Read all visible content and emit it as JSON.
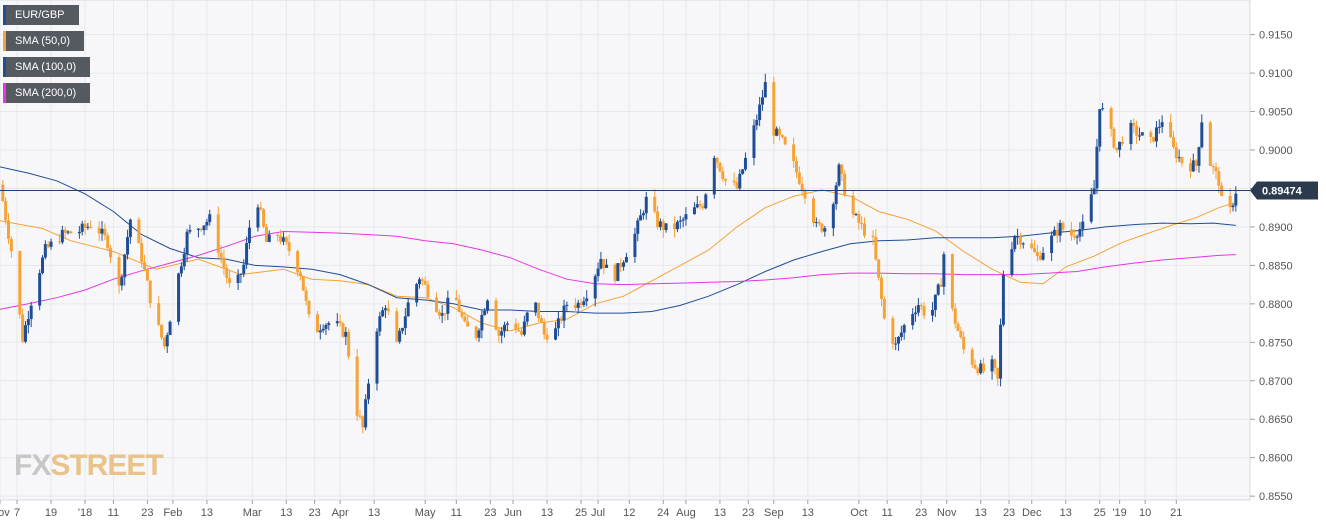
{
  "colors": {
    "up": "#1f4e96",
    "down": "#f5a236",
    "sma50": "#f5a236",
    "sma100": "#1f4e96",
    "sma200": "#e535e5",
    "price_line": "#1f3f6b",
    "grid": "#e6e8ec",
    "background": "#f7f7f9"
  },
  "legend": [
    {
      "label": "EUR/GBP",
      "color": "#1f4e96",
      "icon": "candle-series-swatch"
    },
    {
      "label": "SMA (50,0)",
      "color": "#f5a236",
      "icon": "line-series-swatch"
    },
    {
      "label": "SMA (100,0)",
      "color": "#1f4e96",
      "icon": "line-series-swatch"
    },
    {
      "label": "SMA (200,0)",
      "color": "#e535e5",
      "icon": "line-series-swatch"
    }
  ],
  "logo": {
    "part1": "FX",
    "part2": "STREET"
  },
  "chart_data": {
    "type": "candlestick",
    "title": "",
    "symbol": "EUR/GBP",
    "ylim": [
      0.8545,
      0.9195
    ],
    "yticks": [
      "0.9150",
      "0.9100",
      "0.9050",
      "0.9000",
      "0.8950",
      "0.8900",
      "0.8850",
      "0.8800",
      "0.8750",
      "0.8700",
      "0.8650",
      "0.8600",
      "0.8550"
    ],
    "xlim_days": [
      0,
      441
    ],
    "xticks": [
      {
        "d": 0,
        "label": "Nov"
      },
      {
        "d": 6,
        "label": "7"
      },
      {
        "d": 18,
        "label": "19"
      },
      {
        "d": 30,
        "label": "'18"
      },
      {
        "d": 40,
        "label": "11"
      },
      {
        "d": 52,
        "label": "23"
      },
      {
        "d": 61,
        "label": "Feb"
      },
      {
        "d": 73,
        "label": "13"
      },
      {
        "d": 89,
        "label": "Mar"
      },
      {
        "d": 101,
        "label": "13"
      },
      {
        "d": 111,
        "label": "23"
      },
      {
        "d": 120,
        "label": "Apr"
      },
      {
        "d": 132,
        "label": "13"
      },
      {
        "d": 150,
        "label": "May"
      },
      {
        "d": 161,
        "label": "11"
      },
      {
        "d": 173,
        "label": "23"
      },
      {
        "d": 181,
        "label": "Jun"
      },
      {
        "d": 193,
        "label": "13"
      },
      {
        "d": 205,
        "label": "25"
      },
      {
        "d": 211,
        "label": "Jul"
      },
      {
        "d": 222,
        "label": "12"
      },
      {
        "d": 234,
        "label": "24"
      },
      {
        "d": 242,
        "label": "Aug"
      },
      {
        "d": 254,
        "label": "13"
      },
      {
        "d": 264,
        "label": "23"
      },
      {
        "d": 273,
        "label": "Sep"
      },
      {
        "d": 285,
        "label": "13"
      },
      {
        "d": 303,
        "label": "Oct"
      },
      {
        "d": 313,
        "label": "11"
      },
      {
        "d": 325,
        "label": "23"
      },
      {
        "d": 334,
        "label": "Nov"
      },
      {
        "d": 346,
        "label": "13"
      },
      {
        "d": 356,
        "label": "23"
      },
      {
        "d": 364,
        "label": "Dec"
      },
      {
        "d": 376,
        "label": "13"
      },
      {
        "d": 388,
        "label": "25"
      },
      {
        "d": 395,
        "label": "'19"
      },
      {
        "d": 404,
        "label": "10"
      },
      {
        "d": 415,
        "label": "21"
      }
    ],
    "current_price": 0.89474,
    "current_price_label": "0.89474",
    "series": [
      {
        "name": "EUR/GBP",
        "type": "candlestick",
        "anchors": [
          [
            0,
            0.8955
          ],
          [
            4,
            0.887
          ],
          [
            8,
            0.8755
          ],
          [
            12,
            0.882
          ],
          [
            16,
            0.887
          ],
          [
            22,
            0.889
          ],
          [
            28,
            0.8895
          ],
          [
            33,
            0.8905
          ],
          [
            38,
            0.888
          ],
          [
            42,
            0.882
          ],
          [
            46,
            0.891
          ],
          [
            50,
            0.886
          ],
          [
            54,
            0.879
          ],
          [
            58,
            0.8745
          ],
          [
            62,
            0.882
          ],
          [
            66,
            0.889
          ],
          [
            70,
            0.89
          ],
          [
            74,
            0.891
          ],
          [
            78,
            0.886
          ],
          [
            82,
            0.881
          ],
          [
            86,
            0.885
          ],
          [
            90,
            0.895
          ],
          [
            94,
            0.888
          ],
          [
            98,
            0.889
          ],
          [
            102,
            0.887
          ],
          [
            106,
            0.884
          ],
          [
            110,
            0.876
          ],
          [
            114,
            0.8775
          ],
          [
            118,
            0.8775
          ],
          [
            122,
            0.876
          ],
          [
            126,
            0.866
          ],
          [
            128,
            0.8638
          ],
          [
            132,
            0.876
          ],
          [
            136,
            0.88
          ],
          [
            140,
            0.8745
          ],
          [
            144,
            0.88
          ],
          [
            148,
            0.8835
          ],
          [
            152,
            0.881
          ],
          [
            156,
            0.8785
          ],
          [
            160,
            0.8815
          ],
          [
            164,
            0.877
          ],
          [
            168,
            0.876
          ],
          [
            172,
            0.881
          ],
          [
            176,
            0.876
          ],
          [
            180,
            0.878
          ],
          [
            184,
            0.876
          ],
          [
            188,
            0.881
          ],
          [
            192,
            0.876
          ],
          [
            196,
            0.8765
          ],
          [
            200,
            0.88
          ],
          [
            204,
            0.88
          ],
          [
            208,
            0.882
          ],
          [
            212,
            0.886
          ],
          [
            216,
            0.883
          ],
          [
            220,
            0.886
          ],
          [
            224,
            0.889
          ],
          [
            228,
            0.8935
          ],
          [
            232,
            0.8905
          ],
          [
            236,
            0.8895
          ],
          [
            240,
            0.8905
          ],
          [
            244,
            0.892
          ],
          [
            248,
            0.893
          ],
          [
            252,
            0.8995
          ],
          [
            256,
            0.896
          ],
          [
            260,
            0.895
          ],
          [
            264,
            0.9
          ],
          [
            268,
            0.9055
          ],
          [
            270,
            0.9085
          ],
          [
            272,
            0.903
          ],
          [
            276,
            0.901
          ],
          [
            280,
            0.898
          ],
          [
            284,
            0.8945
          ],
          [
            288,
            0.89
          ],
          [
            292,
            0.89
          ],
          [
            296,
            0.8975
          ],
          [
            300,
            0.892
          ],
          [
            304,
            0.89
          ],
          [
            308,
            0.888
          ],
          [
            310,
            0.883
          ],
          [
            312,
            0.878
          ],
          [
            316,
            0.8745
          ],
          [
            320,
            0.878
          ],
          [
            324,
            0.88
          ],
          [
            328,
            0.878
          ],
          [
            332,
            0.883
          ],
          [
            334,
            0.89
          ],
          [
            336,
            0.879
          ],
          [
            340,
            0.874
          ],
          [
            344,
            0.872
          ],
          [
            348,
            0.871
          ],
          [
            350,
            0.872
          ],
          [
            352,
            0.87
          ],
          [
            354,
            0.884
          ],
          [
            358,
            0.889
          ],
          [
            362,
            0.888
          ],
          [
            366,
            0.886
          ],
          [
            370,
            0.888
          ],
          [
            374,
            0.89
          ],
          [
            378,
            0.889
          ],
          [
            382,
            0.89
          ],
          [
            386,
            0.895
          ],
          [
            388,
            0.906
          ],
          [
            390,
            0.904
          ],
          [
            394,
            0.9
          ],
          [
            398,
            0.903
          ],
          [
            402,
            0.902
          ],
          [
            406,
            0.901
          ],
          [
            410,
            0.904
          ],
          [
            414,
            0.9
          ],
          [
            418,
            0.898
          ],
          [
            422,
            0.898
          ],
          [
            424,
            0.904
          ],
          [
            426,
            0.899
          ],
          [
            430,
            0.896
          ],
          [
            432,
            0.8905
          ],
          [
            434,
            0.892
          ],
          [
            436,
            0.8947
          ]
        ]
      },
      {
        "name": "SMA (50,0)",
        "type": "line",
        "points": [
          [
            0,
            0.8908
          ],
          [
            15,
            0.8898
          ],
          [
            25,
            0.8882
          ],
          [
            40,
            0.8868
          ],
          [
            55,
            0.8845
          ],
          [
            70,
            0.8858
          ],
          [
            85,
            0.8838
          ],
          [
            100,
            0.8845
          ],
          [
            110,
            0.8832
          ],
          [
            120,
            0.883
          ],
          [
            130,
            0.8825
          ],
          [
            140,
            0.881
          ],
          [
            150,
            0.8808
          ],
          [
            160,
            0.8795
          ],
          [
            170,
            0.8775
          ],
          [
            180,
            0.8765
          ],
          [
            190,
            0.8775
          ],
          [
            200,
            0.878
          ],
          [
            210,
            0.88
          ],
          [
            220,
            0.881
          ],
          [
            230,
            0.883
          ],
          [
            240,
            0.885
          ],
          [
            250,
            0.887
          ],
          [
            260,
            0.89
          ],
          [
            270,
            0.8925
          ],
          [
            280,
            0.894
          ],
          [
            290,
            0.8948
          ],
          [
            300,
            0.894
          ],
          [
            310,
            0.892
          ],
          [
            320,
            0.891
          ],
          [
            330,
            0.8895
          ],
          [
            340,
            0.8868
          ],
          [
            350,
            0.8845
          ],
          [
            360,
            0.8828
          ],
          [
            368,
            0.8826
          ],
          [
            376,
            0.8848
          ],
          [
            386,
            0.8862
          ],
          [
            396,
            0.888
          ],
          [
            406,
            0.8893
          ],
          [
            414,
            0.8903
          ],
          [
            422,
            0.8912
          ],
          [
            430,
            0.8925
          ],
          [
            436,
            0.8932
          ]
        ]
      },
      {
        "name": "SMA (100,0)",
        "type": "line",
        "points": [
          [
            0,
            0.8978
          ],
          [
            10,
            0.897
          ],
          [
            20,
            0.896
          ],
          [
            30,
            0.8943
          ],
          [
            40,
            0.892
          ],
          [
            50,
            0.889
          ],
          [
            60,
            0.8872
          ],
          [
            70,
            0.886
          ],
          [
            80,
            0.8858
          ],
          [
            90,
            0.885
          ],
          [
            100,
            0.8848
          ],
          [
            110,
            0.8845
          ],
          [
            120,
            0.8838
          ],
          [
            130,
            0.8825
          ],
          [
            140,
            0.8808
          ],
          [
            150,
            0.8805
          ],
          [
            160,
            0.88
          ],
          [
            170,
            0.8792
          ],
          [
            180,
            0.8792
          ],
          [
            190,
            0.879
          ],
          [
            200,
            0.879
          ],
          [
            210,
            0.8788
          ],
          [
            220,
            0.8788
          ],
          [
            230,
            0.879
          ],
          [
            240,
            0.8798
          ],
          [
            250,
            0.881
          ],
          [
            260,
            0.8825
          ],
          [
            270,
            0.8842
          ],
          [
            280,
            0.8857
          ],
          [
            290,
            0.8868
          ],
          [
            300,
            0.8878
          ],
          [
            310,
            0.8882
          ],
          [
            320,
            0.8883
          ],
          [
            330,
            0.8886
          ],
          [
            340,
            0.8886
          ],
          [
            350,
            0.8886
          ],
          [
            360,
            0.8888
          ],
          [
            370,
            0.8892
          ],
          [
            380,
            0.8895
          ],
          [
            390,
            0.89
          ],
          [
            400,
            0.8903
          ],
          [
            410,
            0.8905
          ],
          [
            420,
            0.8904
          ],
          [
            428,
            0.8905
          ],
          [
            436,
            0.8902
          ]
        ]
      },
      {
        "name": "SMA (200,0)",
        "type": "line",
        "points": [
          [
            0,
            0.8793
          ],
          [
            10,
            0.88
          ],
          [
            20,
            0.8808
          ],
          [
            30,
            0.8818
          ],
          [
            40,
            0.8832
          ],
          [
            50,
            0.8843
          ],
          [
            60,
            0.8853
          ],
          [
            70,
            0.8863
          ],
          [
            80,
            0.8875
          ],
          [
            90,
            0.8888
          ],
          [
            100,
            0.8894
          ],
          [
            110,
            0.8893
          ],
          [
            120,
            0.8892
          ],
          [
            130,
            0.889
          ],
          [
            140,
            0.8888
          ],
          [
            150,
            0.8882
          ],
          [
            160,
            0.8878
          ],
          [
            170,
            0.887
          ],
          [
            180,
            0.886
          ],
          [
            190,
            0.8845
          ],
          [
            200,
            0.8832
          ],
          [
            210,
            0.8826
          ],
          [
            220,
            0.8825
          ],
          [
            230,
            0.8826
          ],
          [
            240,
            0.8827
          ],
          [
            250,
            0.8828
          ],
          [
            260,
            0.8829
          ],
          [
            270,
            0.8831
          ],
          [
            280,
            0.8834
          ],
          [
            290,
            0.8838
          ],
          [
            300,
            0.884
          ],
          [
            310,
            0.884
          ],
          [
            320,
            0.8839
          ],
          [
            330,
            0.8839
          ],
          [
            340,
            0.8838
          ],
          [
            350,
            0.8838
          ],
          [
            360,
            0.8838
          ],
          [
            370,
            0.884
          ],
          [
            380,
            0.8842
          ],
          [
            390,
            0.8848
          ],
          [
            400,
            0.8853
          ],
          [
            410,
            0.8857
          ],
          [
            420,
            0.886
          ],
          [
            430,
            0.8863
          ],
          [
            436,
            0.8864
          ]
        ]
      }
    ]
  }
}
